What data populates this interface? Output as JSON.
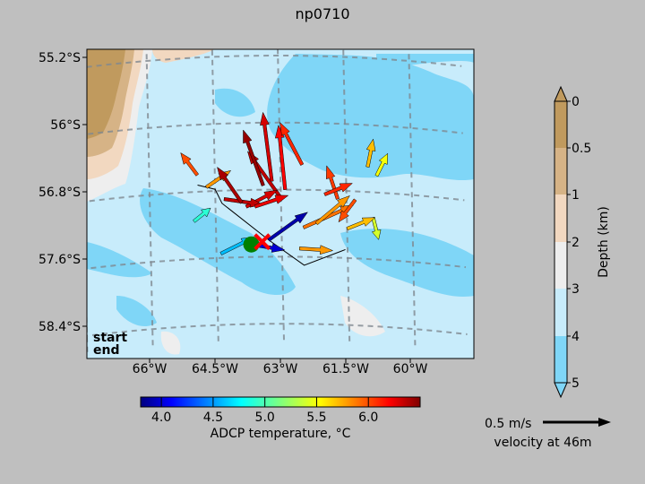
{
  "chart_data": {
    "type": "map-quiver",
    "title": "np0710",
    "lon_ticks": [
      "66°W",
      "64.5°W",
      "63°W",
      "61.5°W",
      "60°W"
    ],
    "lat_ticks": [
      "55.2°S",
      "56°S",
      "56.8°S",
      "57.6°S",
      "58.4°S"
    ],
    "legend_start": "start",
    "legend_end": "end",
    "start_color": "#008000",
    "end_color": "#ff0000",
    "temperature_colorbar": {
      "label": "ADCP temperature, °C",
      "range": [
        3.8,
        6.5
      ],
      "ticks": [
        "4.0",
        "4.5",
        "5.0",
        "5.5",
        "6.0"
      ]
    },
    "depth_colorbar": {
      "label": "Depth (km)",
      "ticks": [
        "0",
        "0.5",
        "1",
        "2",
        "3",
        "4",
        "5"
      ],
      "colors": [
        "#c09a5e",
        "#d6b386",
        "#f2d8c0",
        "#eeeeee",
        "#c8ecfb",
        "#7fd6f7"
      ]
    },
    "scale_arrow": {
      "speed_label": "0.5 m/s",
      "depth_label": "velocity at 46m"
    },
    "track": [
      {
        "lon": -64.9,
        "lat": -56.72
      },
      {
        "lon": -64.5,
        "lat": -56.78
      },
      {
        "lon": -64.35,
        "lat": -56.95
      },
      {
        "lon": -63.3,
        "lat": -57.4
      },
      {
        "lon": -62.5,
        "lat": -57.7
      },
      {
        "lon": -61.55,
        "lat": -57.5
      }
    ],
    "start_point": {
      "lon": -63.7,
      "lat": -57.45
    },
    "end_point": {
      "lon": -63.45,
      "lat": -57.42
    },
    "vectors": [
      {
        "lon": -63.2,
        "lat": -56.7,
        "u": -0.08,
        "v": 0.62,
        "t": 6.3
      },
      {
        "lon": -62.9,
        "lat": -56.8,
        "u": -0.06,
        "v": 0.58,
        "t": 6.2
      },
      {
        "lon": -63.0,
        "lat": -56.9,
        "u": -0.3,
        "v": 0.42,
        "t": 6.35
      },
      {
        "lon": -62.5,
        "lat": -56.5,
        "u": -0.2,
        "v": 0.38,
        "t": 6.1
      },
      {
        "lon": -63.8,
        "lat": -57.0,
        "u": 0.28,
        "v": 0.15,
        "t": 6.3
      },
      {
        "lon": -64.3,
        "lat": -56.9,
        "u": 0.35,
        "v": -0.05,
        "t": 6.35
      },
      {
        "lon": -63.6,
        "lat": -57.0,
        "u": 0.3,
        "v": 0.1,
        "t": 6.25
      },
      {
        "lon": -64.9,
        "lat": -56.6,
        "u": -0.15,
        "v": 0.2,
        "t": 6.0
      },
      {
        "lon": -64.7,
        "lat": -56.75,
        "u": 0.22,
        "v": 0.15,
        "t": 5.8
      },
      {
        "lon": -62.5,
        "lat": -57.25,
        "u": 0.45,
        "v": 0.2,
        "t": 5.9
      },
      {
        "lon": -62.2,
        "lat": -57.2,
        "u": 0.3,
        "v": 0.25,
        "t": 5.8
      },
      {
        "lon": -61.7,
        "lat": -56.9,
        "u": -0.1,
        "v": 0.3,
        "t": 6.05
      },
      {
        "lon": -61.0,
        "lat": -56.5,
        "u": 0.05,
        "v": 0.25,
        "t": 5.7
      },
      {
        "lon": -60.8,
        "lat": -56.6,
        "u": 0.1,
        "v": 0.2,
        "t": 5.5
      },
      {
        "lon": -61.3,
        "lat": -56.9,
        "u": -0.15,
        "v": -0.2,
        "t": 6.0
      },
      {
        "lon": -60.9,
        "lat": -57.1,
        "u": 0.05,
        "v": -0.2,
        "t": 5.4
      },
      {
        "lon": -62.6,
        "lat": -57.5,
        "u": 0.3,
        "v": -0.02,
        "t": 5.8
      },
      {
        "lon": -63.3,
        "lat": -57.4,
        "u": 0.35,
        "v": 0.25,
        "t": 3.9
      },
      {
        "lon": -63.7,
        "lat": -57.45,
        "u": 0.3,
        "v": -0.05,
        "t": 4.0
      },
      {
        "lon": -64.4,
        "lat": -57.55,
        "u": 0.3,
        "v": 0.15,
        "t": 4.6
      },
      {
        "lon": -65.0,
        "lat": -57.15,
        "u": 0.15,
        "v": 0.12,
        "t": 4.9
      },
      {
        "lon": -63.9,
        "lat": -56.95,
        "u": -0.22,
        "v": 0.32,
        "t": 6.4
      },
      {
        "lon": -63.4,
        "lat": -56.75,
        "u": -0.18,
        "v": 0.5,
        "t": 6.45
      },
      {
        "lon": -62.0,
        "lat": -56.85,
        "u": 0.25,
        "v": 0.1,
        "t": 6.1
      },
      {
        "lon": -61.5,
        "lat": -57.25,
        "u": 0.25,
        "v": 0.1,
        "t": 5.7
      }
    ]
  }
}
